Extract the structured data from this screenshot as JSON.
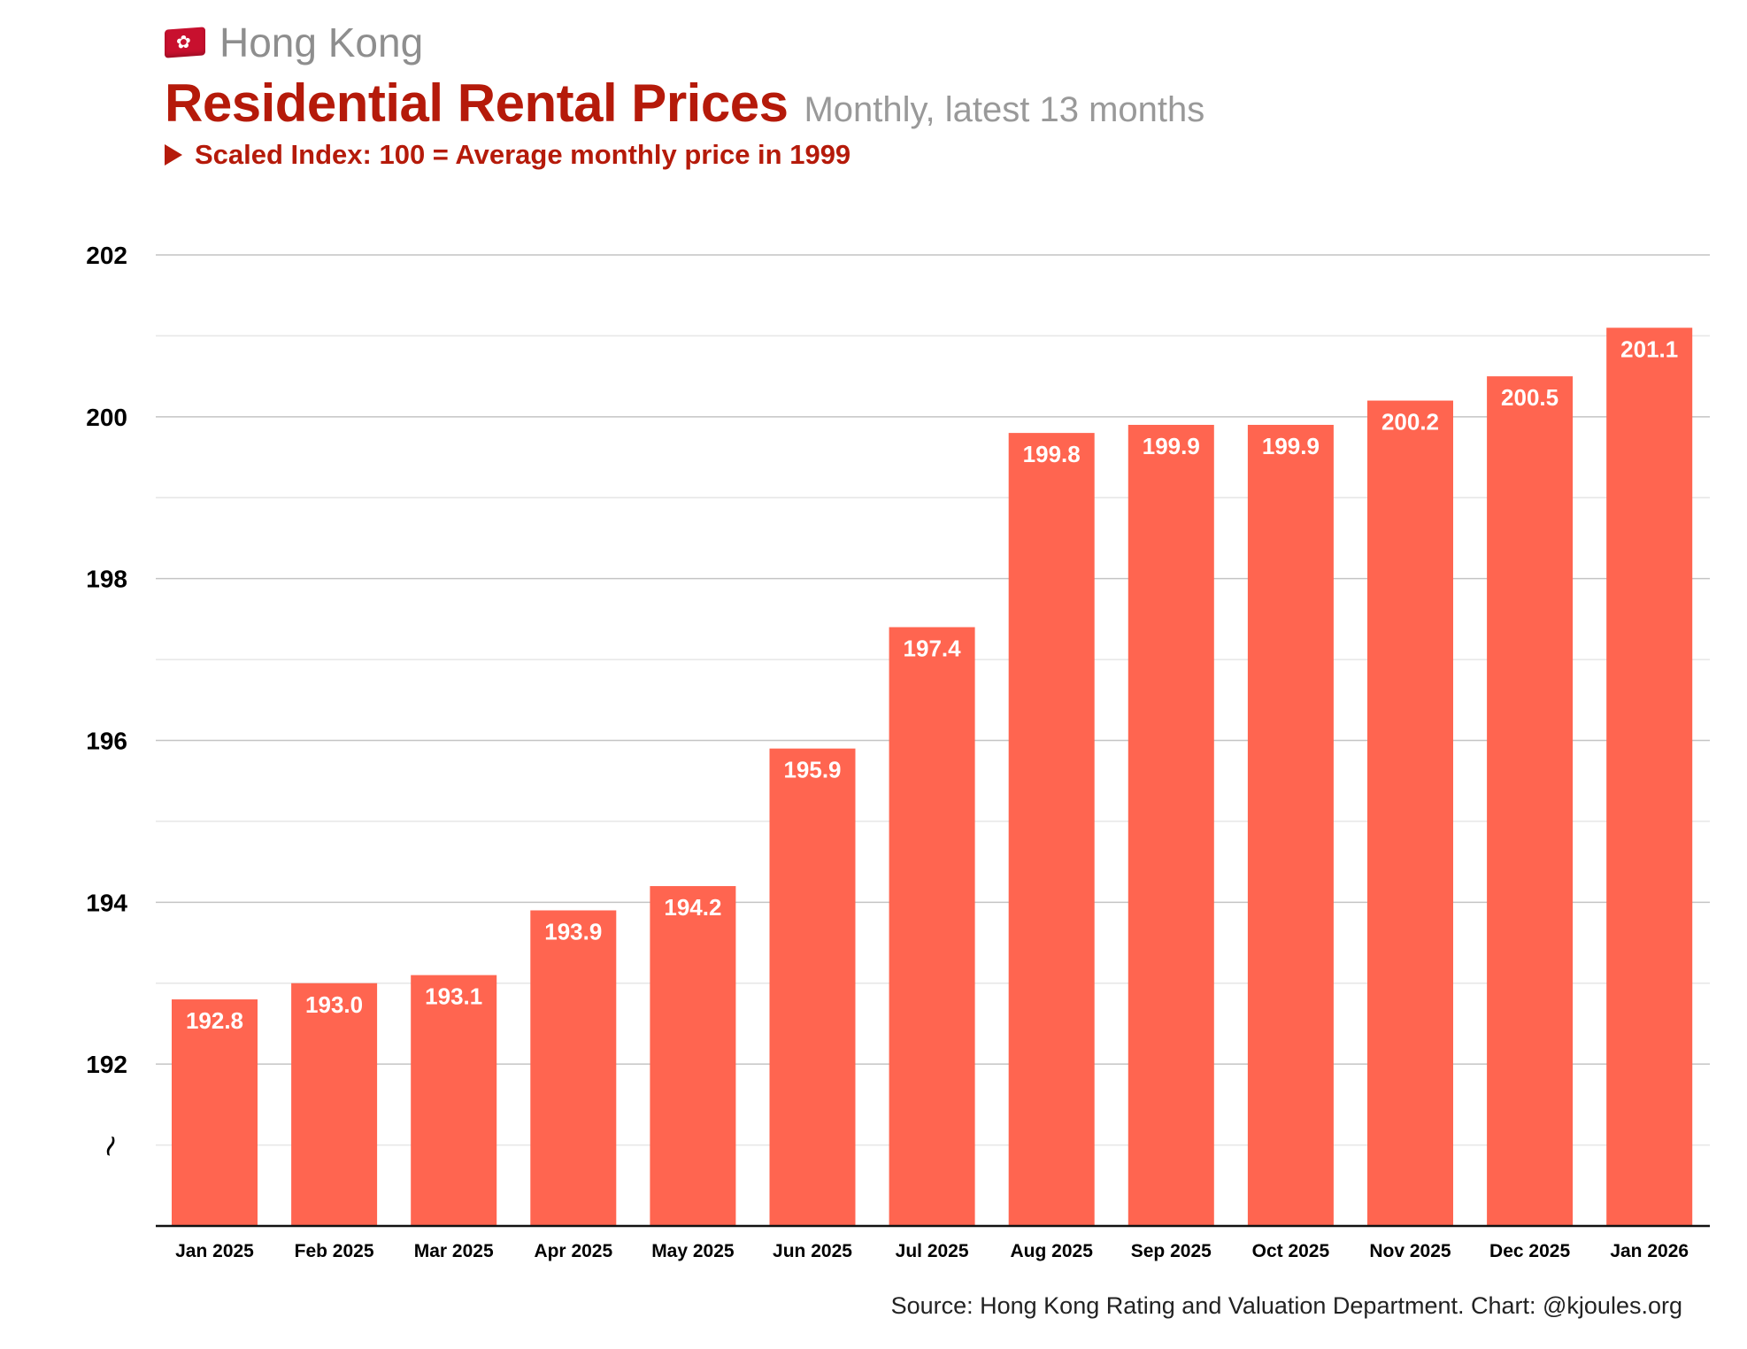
{
  "header": {
    "region_icon": "hong-kong-flag-icon",
    "region": "Hong Kong",
    "title": "Residential Rental Prices",
    "subtitle": "Monthly, latest 13 months",
    "note_icon": "triangle-right-icon",
    "note": "Scaled Index: 100 = Average monthly price in 1999"
  },
  "colors": {
    "bar": "#ff6550",
    "title": "#b51a0a",
    "bar_label": "#ffffff",
    "grid_major": "#c4c4c4",
    "grid_minor": "#e6e6e6",
    "axis": "#111111"
  },
  "footer": {
    "source": "Source: Hong Kong Rating and Valuation Department. Chart: @kjoules.org"
  },
  "chart_data": {
    "type": "bar",
    "title": "Residential Rental Prices",
    "subtitle": "Monthly, latest 13 months",
    "xlabel": "",
    "ylabel": "",
    "categories": [
      "Jan 2025",
      "Feb 2025",
      "Mar 2025",
      "Apr 2025",
      "May 2025",
      "Jun 2025",
      "Jul 2025",
      "Aug 2025",
      "Sep 2025",
      "Oct 2025",
      "Nov 2025",
      "Dec 2025",
      "Jan 2026"
    ],
    "values": [
      192.8,
      193.0,
      193.1,
      193.9,
      194.2,
      195.9,
      197.4,
      199.8,
      199.9,
      199.9,
      200.2,
      200.5,
      201.1
    ],
    "data_labels": [
      "192.8",
      "193.0",
      "193.1",
      "193.9",
      "194.2",
      "195.9",
      "197.4",
      "199.8",
      "199.9",
      "199.9",
      "200.2",
      "200.5",
      "201.1"
    ],
    "ylim": [
      190,
      202
    ],
    "yticks": [
      192,
      194,
      196,
      198,
      200,
      202
    ],
    "minor_gridlines": [
      191,
      193,
      195,
      197,
      199,
      201
    ],
    "axis_break": true,
    "axis_break_symbol": "~",
    "grid": true,
    "legend": "none"
  }
}
